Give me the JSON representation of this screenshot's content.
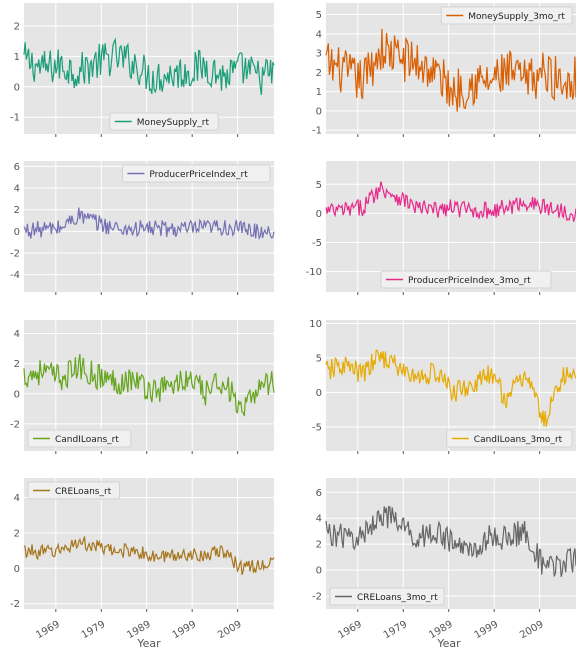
{
  "figure": {
    "xlabel": "Year"
  },
  "colors": {
    "panel_bg": "#E5E5E5",
    "grid": "#FFFFFF",
    "tick_text": "#555555"
  },
  "chart_data": [
    {
      "type": "line",
      "series": [
        {
          "name": "MoneySupply_rt",
          "color": "#1B9E77"
        }
      ],
      "x_ticks": [
        "1969",
        "1979",
        "1989",
        "1999",
        "2009"
      ],
      "xlim": [
        1962,
        2017
      ],
      "y_ticks": [
        -1,
        0,
        1,
        2
      ],
      "ylim": [
        -1.55,
        2.75
      ],
      "legend": "bottom-center",
      "grid": true,
      "sampled": {
        "x": [
          1962,
          1966,
          1970,
          1974,
          1978,
          1982,
          1986,
          1990,
          1994,
          1998,
          2002,
          2006,
          2010,
          2014,
          2017
        ],
        "y": [
          0.9,
          0.6,
          0.7,
          0.5,
          0.8,
          1.0,
          0.8,
          0.3,
          0.4,
          0.5,
          0.7,
          0.3,
          0.6,
          0.3,
          0.5
        ],
        "spread": 0.6
      }
    },
    {
      "type": "line",
      "series": [
        {
          "name": "MoneySupply_3mo_rt",
          "color": "#D95F02"
        }
      ],
      "x_ticks": [
        "1969",
        "1979",
        "1989",
        "1999",
        "2009"
      ],
      "xlim": [
        1962,
        2017
      ],
      "y_ticks": [
        -1,
        0,
        1,
        2,
        3,
        4,
        5
      ],
      "ylim": [
        -1.2,
        5.6
      ],
      "legend": "top-right",
      "grid": true,
      "sampled": {
        "x": [
          1962,
          1966,
          1970,
          1974,
          1978,
          1982,
          1986,
          1990,
          1994,
          1998,
          2002,
          2006,
          2010,
          2014,
          2017
        ],
        "y": [
          2.5,
          2.0,
          1.5,
          3.2,
          2.8,
          2.5,
          2.0,
          1.0,
          1.5,
          1.5,
          2.0,
          1.5,
          2.0,
          1.5,
          1.8
        ],
        "spread": 1.2
      }
    },
    {
      "type": "line",
      "series": [
        {
          "name": "ProducerPriceIndex_rt",
          "color": "#7570B3"
        }
      ],
      "x_ticks": [
        "1969",
        "1979",
        "1989",
        "1999",
        "2009"
      ],
      "xlim": [
        1962,
        2017
      ],
      "y_ticks": [
        -4,
        -2,
        0,
        2,
        4,
        6
      ],
      "ylim": [
        -5.6,
        6.5
      ],
      "legend": "top-right",
      "grid": true,
      "sampled": {
        "x": [
          1962,
          1966,
          1970,
          1974,
          1978,
          1982,
          1986,
          1990,
          1994,
          1998,
          2002,
          2006,
          2010,
          2014,
          2017
        ],
        "y": [
          0.1,
          0.2,
          0.3,
          1.5,
          0.8,
          0.3,
          0.2,
          0.3,
          0.2,
          0.2,
          0.3,
          0.4,
          0.2,
          0.0,
          0.1
        ],
        "spread": 0.8
      }
    },
    {
      "type": "line",
      "series": [
        {
          "name": "ProducerPriceIndex_3mo_rt",
          "color": "#E7298A"
        }
      ],
      "x_ticks": [
        "1969",
        "1979",
        "1989",
        "1999",
        "2009"
      ],
      "xlim": [
        1962,
        2017
      ],
      "y_ticks": [
        -10,
        -5,
        0,
        5
      ],
      "ylim": [
        -13.5,
        9
      ],
      "legend": "bottom-center",
      "grid": true,
      "sampled": {
        "x": [
          1962,
          1966,
          1970,
          1974,
          1978,
          1982,
          1986,
          1990,
          1994,
          1998,
          2002,
          2006,
          2010,
          2014,
          2017
        ],
        "y": [
          0.3,
          0.5,
          1.0,
          4.5,
          2.8,
          1.0,
          0.5,
          1.0,
          0.5,
          0.5,
          1.0,
          2.0,
          1.0,
          0.5,
          0.0
        ],
        "spread": 1.5
      }
    },
    {
      "type": "line",
      "series": [
        {
          "name": "CandILoans_rt",
          "color": "#66A61E"
        }
      ],
      "x_ticks": [
        "1969",
        "1979",
        "1989",
        "1999",
        "2009"
      ],
      "xlim": [
        1962,
        2017
      ],
      "y_ticks": [
        -2,
        0,
        2,
        4
      ],
      "ylim": [
        -3.8,
        4.9
      ],
      "legend": "bottom-left",
      "grid": true,
      "sampled": {
        "x": [
          1962,
          1966,
          1970,
          1974,
          1978,
          1982,
          1986,
          1990,
          1994,
          1998,
          2002,
          2006,
          2010,
          2014,
          2017
        ],
        "y": [
          1.2,
          1.5,
          1.0,
          1.8,
          1.2,
          0.8,
          1.0,
          0.2,
          0.5,
          1.0,
          0.0,
          1.0,
          -1.5,
          0.8,
          0.7
        ],
        "spread": 0.9
      }
    },
    {
      "type": "line",
      "series": [
        {
          "name": "CandILoans_3mo_rt",
          "color": "#E6AB02"
        }
      ],
      "x_ticks": [
        "1969",
        "1979",
        "1989",
        "1999",
        "2009"
      ],
      "xlim": [
        1962,
        2017
      ],
      "y_ticks": [
        -5,
        0,
        5,
        10
      ],
      "ylim": [
        -8.5,
        10.5
      ],
      "legend": "bottom-right",
      "grid": true,
      "sampled": {
        "x": [
          1962,
          1966,
          1970,
          1974,
          1978,
          1982,
          1986,
          1990,
          1994,
          1998,
          2002,
          2006,
          2010,
          2014,
          2017
        ],
        "y": [
          3.0,
          4.0,
          2.5,
          5.5,
          3.5,
          2.0,
          3.0,
          0.0,
          1.0,
          2.5,
          -1.0,
          3.0,
          -4.5,
          2.5,
          2.0
        ],
        "spread": 1.6
      }
    },
    {
      "type": "line",
      "series": [
        {
          "name": "CRELoans_rt",
          "color": "#A6761D"
        }
      ],
      "x_ticks": [
        "1969",
        "1979",
        "1989",
        "1999",
        "2009"
      ],
      "xlim": [
        1962,
        2017
      ],
      "y_ticks": [
        -2,
        0,
        2,
        4
      ],
      "ylim": [
        -2.3,
        5.1
      ],
      "legend": "top-left",
      "grid": true,
      "sampled": {
        "x": [
          1962,
          1966,
          1970,
          1974,
          1978,
          1982,
          1986,
          1990,
          1994,
          1998,
          2002,
          2006,
          2010,
          2014,
          2017
        ],
        "y": [
          1.0,
          0.9,
          1.0,
          1.5,
          1.2,
          0.9,
          1.1,
          0.6,
          0.7,
          0.8,
          0.8,
          0.9,
          0.0,
          0.2,
          0.3
        ],
        "spread": 0.4
      }
    },
    {
      "type": "line",
      "series": [
        {
          "name": "CRELoans_3mo_rt",
          "color": "#666666"
        }
      ],
      "x_ticks": [
        "1969",
        "1979",
        "1989",
        "1999",
        "2009"
      ],
      "xlim": [
        1962,
        2017
      ],
      "y_ticks": [
        -2,
        0,
        2,
        4,
        6
      ],
      "ylim": [
        -3,
        7.1
      ],
      "legend": "bottom-left",
      "grid": true,
      "sampled": {
        "x": [
          1962,
          1966,
          1970,
          1974,
          1978,
          1982,
          1986,
          1990,
          1994,
          1998,
          2002,
          2006,
          2010,
          2014,
          2017
        ],
        "y": [
          3.0,
          2.5,
          2.5,
          4.5,
          3.5,
          2.5,
          3.0,
          2.0,
          1.5,
          2.5,
          2.5,
          3.0,
          0.0,
          0.5,
          0.8
        ],
        "spread": 1.0
      }
    }
  ]
}
